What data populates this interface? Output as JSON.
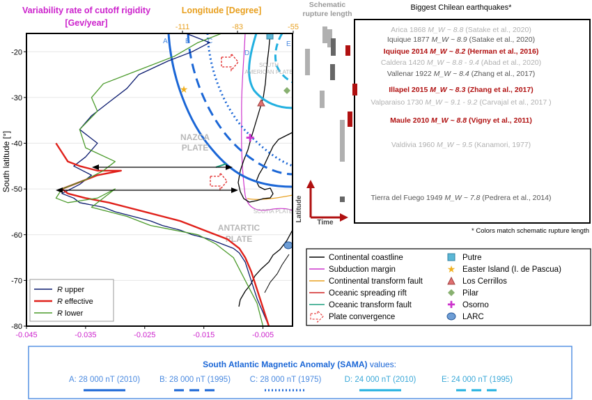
{
  "chart_data": {
    "type": "line",
    "top_axis_title_magenta": "Variability rate of cutoff rigidity",
    "top_axis_title_magenta_unit": "[Gev/year]",
    "top_axis_title_orange": "Longitude [Degree]",
    "ylabel": "South latitude [°]",
    "ylim": [
      -80,
      -16
    ],
    "yticks": [
      "-20",
      "-30",
      "-40",
      "-50",
      "-60",
      "-70",
      "-80"
    ],
    "xlim": [
      -0.045,
      0.0
    ],
    "xticks": [
      "-0.045",
      "-0.035",
      "-0.025",
      "-0.015",
      "-0.005"
    ],
    "lon_ticks": [
      "-111",
      "-83",
      "-55"
    ],
    "series": [
      {
        "name": "R upper",
        "color": "#0a1a6e",
        "x": [
          -0.018,
          -0.014,
          -0.017,
          -0.021,
          -0.026,
          -0.028,
          -0.031,
          -0.034,
          -0.036,
          -0.033,
          -0.035,
          -0.037,
          -0.034,
          -0.036,
          -0.039,
          -0.037,
          -0.036,
          -0.032,
          -0.03,
          -0.027,
          -0.024,
          -0.022,
          -0.019,
          -0.017,
          -0.014,
          -0.012,
          -0.01,
          -0.009,
          -0.008,
          -0.007,
          -0.006,
          -0.005,
          -0.004
        ],
        "y": [
          -16,
          -18,
          -20,
          -22,
          -25,
          -28,
          -31,
          -34,
          -37,
          -40,
          -43,
          -45,
          -47,
          -49,
          -51,
          -52,
          -53,
          -54,
          -55,
          -56,
          -57,
          -58,
          -59,
          -60,
          -61,
          -62,
          -63,
          -64,
          -66,
          -70,
          -74,
          -77,
          -80
        ]
      },
      {
        "name": "R effective",
        "color": "#e0201a",
        "x": [
          -0.04,
          -0.039,
          -0.038,
          -0.036,
          -0.033,
          -0.029,
          -0.033,
          -0.035,
          -0.037,
          -0.039,
          -0.038,
          -0.035,
          -0.031,
          -0.028,
          -0.025,
          -0.022,
          -0.019,
          -0.017,
          -0.015,
          -0.013,
          -0.011,
          -0.01,
          -0.009,
          -0.008,
          -0.007,
          -0.006,
          -0.005,
          -0.004
        ],
        "y": [
          -40,
          -42,
          -44,
          -45,
          -46,
          -46,
          -47,
          -48,
          -49,
          -50,
          -51,
          -52,
          -53,
          -54,
          -55,
          -56,
          -57,
          -58,
          -59,
          -60,
          -61,
          -62,
          -63,
          -65,
          -68,
          -72,
          -76,
          -80
        ]
      },
      {
        "name": "R lower",
        "color": "#4a9a2a",
        "x": [
          -0.012,
          -0.016,
          -0.02,
          -0.026,
          -0.032,
          -0.034,
          -0.033,
          -0.036,
          -0.035,
          -0.03,
          -0.032,
          -0.035,
          -0.039,
          -0.04,
          -0.038,
          -0.033,
          -0.03,
          -0.034,
          -0.028,
          -0.026,
          -0.024,
          -0.02,
          -0.016,
          -0.013,
          -0.01,
          -0.008,
          -0.006,
          -0.005
        ],
        "y": [
          -16,
          -18,
          -21,
          -24,
          -27,
          -30,
          -33,
          -37,
          -41,
          -44,
          -46,
          -48,
          -50,
          -52,
          -53,
          -52,
          -50,
          -54,
          -56,
          -57,
          -58,
          -59,
          -60,
          -62,
          -65,
          -70,
          -75,
          -80
        ]
      }
    ]
  },
  "map": {
    "plate_nazca": "NAZCA\nPLATE",
    "plate_nazca_l1": "NAZCA",
    "plate_nazca_l2": "PLATE",
    "plate_south_american_l1": "SOUTH",
    "plate_south_american_l2": "AMERICAN PLATE",
    "plate_scotia": "SCOTIA PLATE",
    "plate_antartic_l1": "ANTARTIC",
    "plate_antartic_l2": "PLATE",
    "curve_labels": [
      "A",
      "B",
      "C",
      "D",
      "E"
    ]
  },
  "legend_r": [
    {
      "label": "R",
      "suffix": " upper",
      "color": "#0a1a6e"
    },
    {
      "label": "R",
      "suffix": " effective",
      "color": "#e0201a"
    },
    {
      "label": "R",
      "suffix": " lower",
      "color": "#4a9a2a"
    }
  ],
  "legend_map": {
    "left": [
      {
        "label": "Continental coastline",
        "color": "#000000"
      },
      {
        "label": "Subduction margin",
        "color": "#cc33cc"
      },
      {
        "label": "Continental transform fault",
        "color": "#e8a020"
      },
      {
        "label": "Oceanic spreading rift",
        "color": "#d02020"
      },
      {
        "label": "Oceanic transform fault",
        "color": "#20a080"
      },
      {
        "label": "Plate convergence",
        "color": "#e02020"
      }
    ],
    "right": [
      {
        "label": "Putre",
        "color": "#5bb7d6",
        "marker": "square"
      },
      {
        "label": "Easter Island (I. de Pascua)",
        "color": "#f0b020",
        "marker": "star"
      },
      {
        "label": "Los Cerrillos",
        "color": "#e07070",
        "marker": "triangle"
      },
      {
        "label": "Pilar",
        "color": "#88b070",
        "marker": "diamond"
      },
      {
        "label": "Osorno",
        "color": "#cc33cc",
        "marker": "cross"
      },
      {
        "label": "LARC",
        "color": "#6e9ed6",
        "marker": "circle"
      }
    ]
  },
  "quakes": {
    "panel_heading": "Schematic\nrupture length",
    "panel_heading_l1": "Schematic",
    "panel_heading_l2": "rupture length",
    "title": "Biggest Chilean earthquakes*",
    "footnote": "* Colors match schematic rupture length",
    "axis_y": "Latitude",
    "axis_x": "Time",
    "items": [
      {
        "name": "Arica 1868",
        "mag": "M_W ~ 8.8",
        "ref": "(Satake et al., 2020)",
        "color": "#b0b0b0"
      },
      {
        "name": "Iquique 1877",
        "mag": "M_W ~ 8.9",
        "ref": "(Satake et al., 2020)",
        "color": "#555555"
      },
      {
        "name": "Iquique 2014",
        "mag": "M_W ~ 8.2",
        "ref": "(Herman et al., 2016)",
        "color": "#b01010"
      },
      {
        "name": "Caldera 1420",
        "mag": "M_W ~ 8.8 - 9.4",
        "ref": "(Abad et al., 2020)",
        "color": "#b0b0b0"
      },
      {
        "name": "Vallenar 1922",
        "mag": "M_W ~ 8.4",
        "ref": "(Zhang et al., 2017)",
        "color": "#555555"
      },
      {
        "name": "Illapel 2015",
        "mag": "M_W ~ 8.3",
        "ref": "(Zhang et al., 2017)",
        "color": "#b01010"
      },
      {
        "name": "Valparaiso 1730",
        "mag": "M_W ~ 9.1 - 9.2",
        "ref": "(Carvajal et al., 2017 )",
        "color": "#b0b0b0"
      },
      {
        "name": "Maule 2010",
        "mag": "M_W ~ 8.8",
        "ref": "(Vigny et al., 2011)",
        "color": "#b01010"
      },
      {
        "name": "Valdivia 1960",
        "mag": "M_W ~ 9.5",
        "ref": "(Kanamori, 1977)",
        "color": "#b0b0b0"
      },
      {
        "name": "Tierra del Fuego 1949",
        "mag": "M_W ~ 7.8",
        "ref": "(Pedrera et al., 2014)",
        "color": "#555555"
      }
    ]
  },
  "sama": {
    "title": "South Atlantic Magnetic Anomaly (SAMA)",
    "title_suffix": " values:",
    "items": [
      {
        "label": "A: 28 000 nT (2010)",
        "style": "solid",
        "color": "#1a66d6"
      },
      {
        "label": "B: 28 000 nT (1995)",
        "style": "dashed",
        "color": "#1a66d6"
      },
      {
        "label": "C: 28 000 nT (1975)",
        "style": "dotted",
        "color": "#1a66d6"
      },
      {
        "label": "D: 24 000 nT (2010)",
        "style": "solid",
        "color": "#22b0e0"
      },
      {
        "label": "E: 24 000 nT (1995)",
        "style": "dashed",
        "color": "#22b0e0"
      }
    ]
  }
}
